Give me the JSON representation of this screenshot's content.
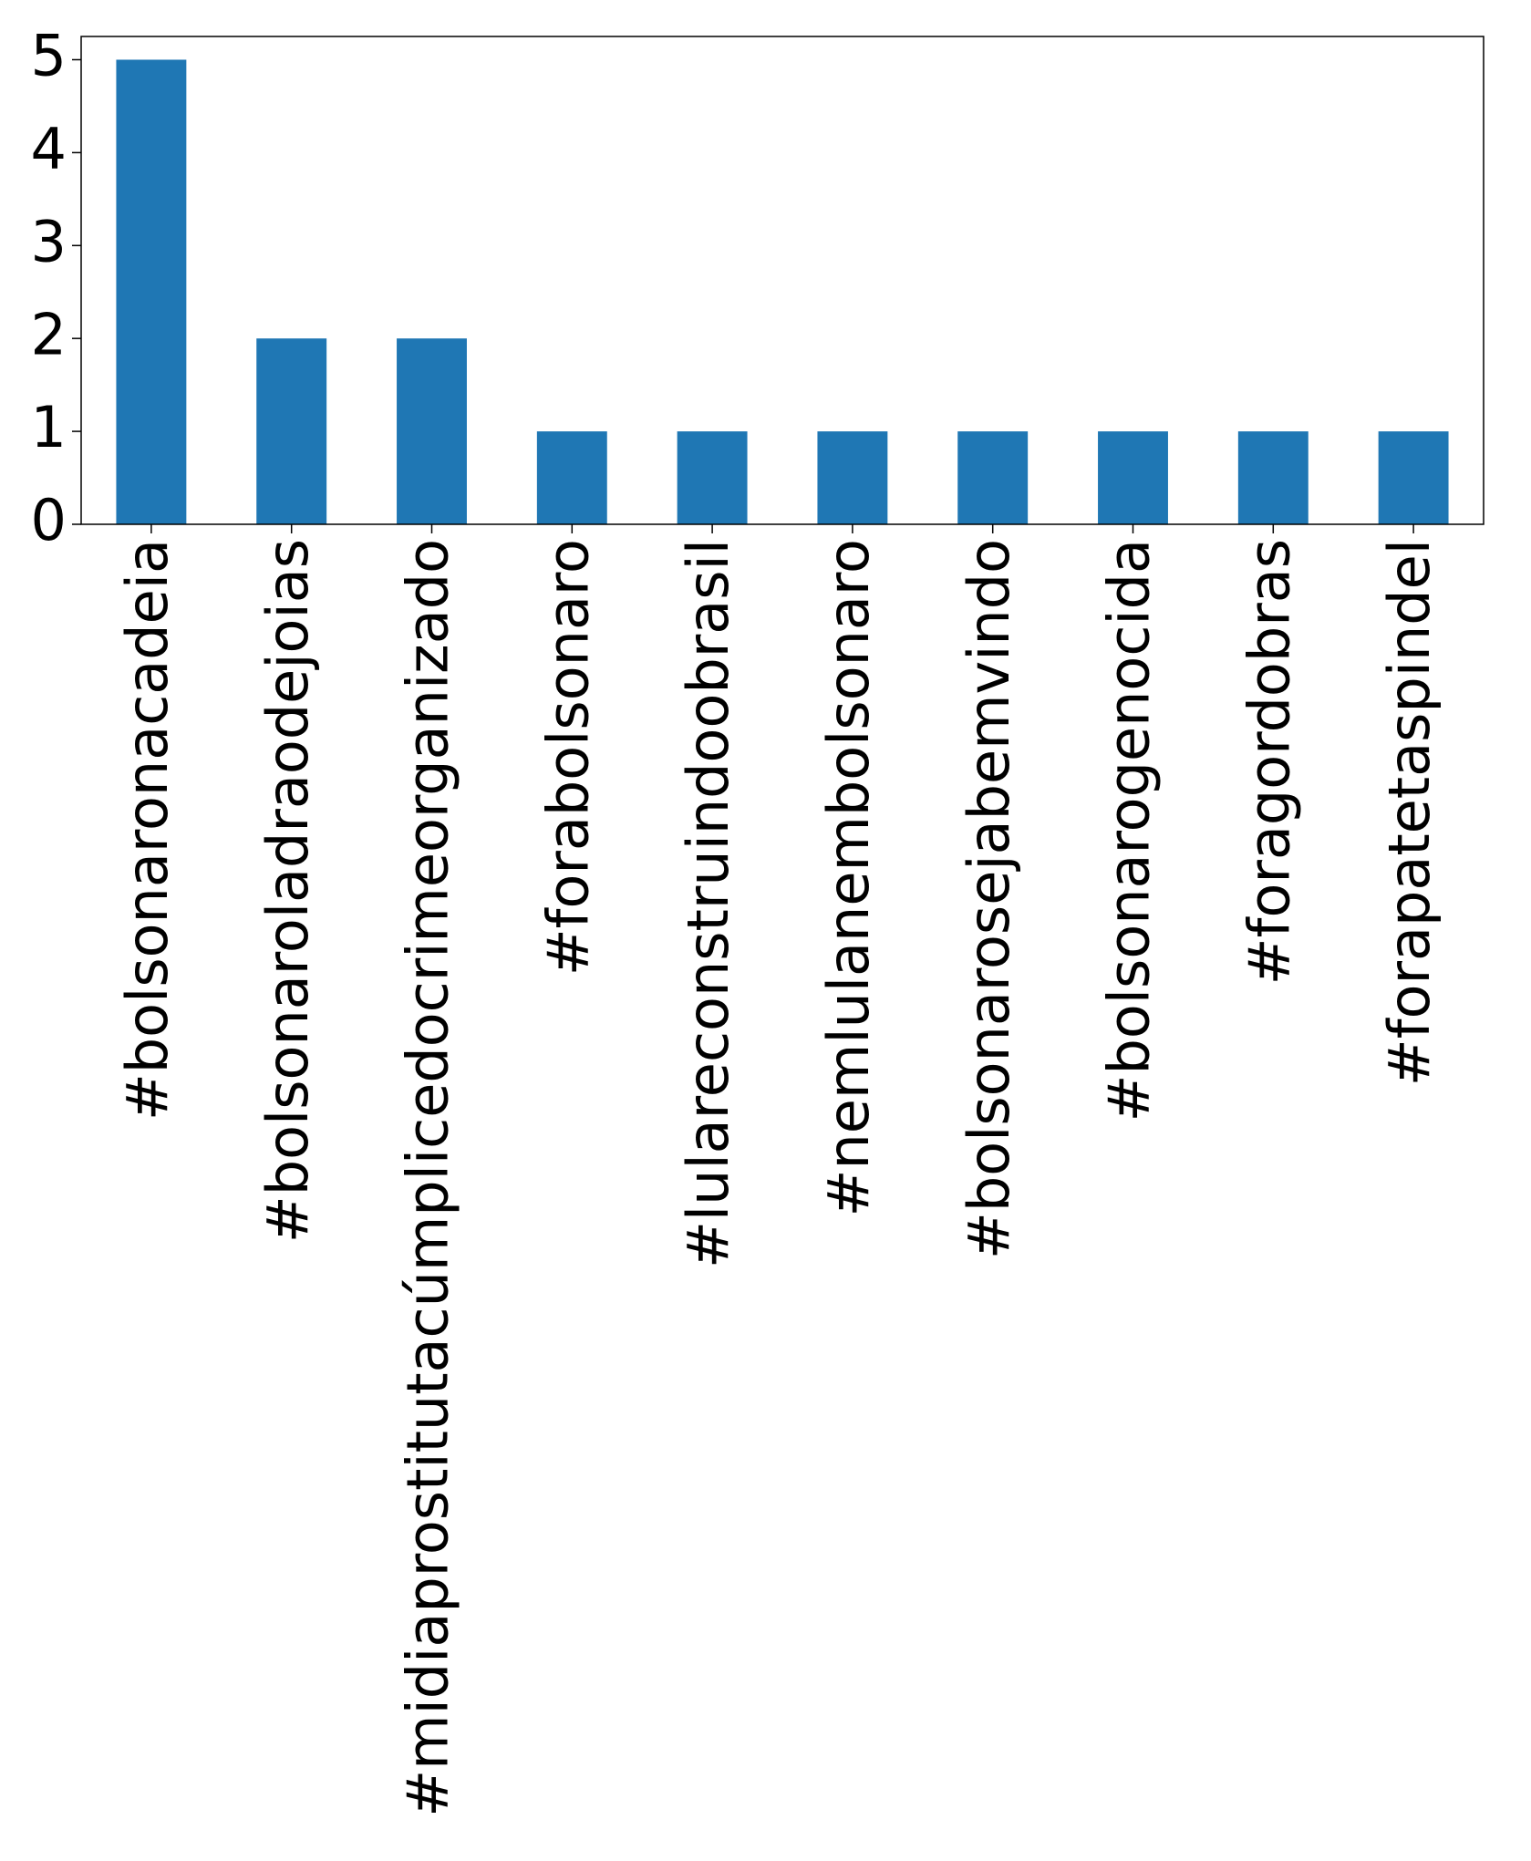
{
  "chart_data": {
    "type": "bar",
    "categories": [
      "#bolsonaronacadeia",
      "#bolsonaroladraodejoias",
      "#midiaprostitutacúmplicedocrimeorganizado",
      "#forabolsonaro",
      "#lulareconstruindoobrasil",
      "#nemlulanembolsonaro",
      "#bolsonarosejabemvindo",
      "#bolsonarogenocida",
      "#foragordobras",
      "#forapatetaspindel"
    ],
    "values": [
      5,
      2,
      2,
      1,
      1,
      1,
      1,
      1,
      1,
      1
    ],
    "color": "#1f77b4",
    "ylim": [
      0,
      5.25
    ],
    "yticks": [
      0,
      1,
      2,
      3,
      4,
      5
    ],
    "grid": false
  }
}
